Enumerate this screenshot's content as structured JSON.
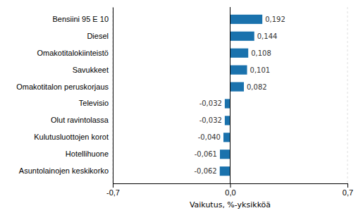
{
  "chart_data": {
    "type": "bar",
    "orientation": "horizontal",
    "categories": [
      "Asuntolainojen keskikorko",
      "Hotellihuone",
      "Kulutusluottojen korot",
      "Olut ravintolassa",
      "Televisio",
      "Omakotitalon peruskorjaus",
      "Savukkeet",
      "Omakotitalokiinteistö",
      "Diesel",
      "Bensiini 95 E 10"
    ],
    "values": [
      -0.062,
      -0.061,
      -0.04,
      -0.032,
      -0.032,
      0.082,
      0.101,
      0.108,
      0.144,
      0.192
    ],
    "value_labels": [
      "-0,062",
      "-0,061",
      "-0,040",
      "-0,032",
      "-0,032",
      "0,082",
      "0,101",
      "0,108",
      "0,144",
      "0,192"
    ],
    "data_labels": true,
    "color": "#1a72ad",
    "xlabel": "Vaikutus, %-yksikköä",
    "xlim": [
      -0.7,
      0.7
    ],
    "xticks": [
      {
        "value": -0.7,
        "label": "-0,7"
      },
      {
        "value": 0.0,
        "label": "0,0"
      },
      {
        "value": 0.7,
        "label": "0,7"
      }
    ],
    "grid": true
  }
}
